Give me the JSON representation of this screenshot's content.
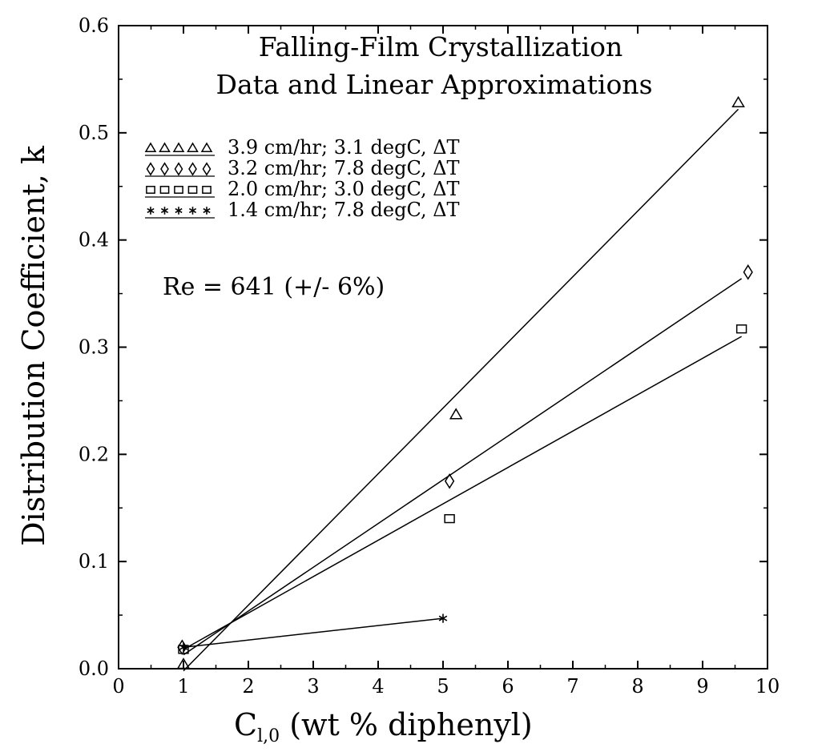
{
  "chart_data": {
    "type": "scatter",
    "title": "Falling-Film Crystallization",
    "subtitle": "Data and Linear Approximations",
    "xlabel": {
      "main": "C",
      "subscript": "l,0",
      "rest": " (wt % diphenyl)"
    },
    "ylabel": "Distribution Coefficient, k",
    "xlim": [
      0,
      10
    ],
    "ylim": [
      0,
      0.6
    ],
    "xticks": [
      "0",
      "1",
      "2",
      "3",
      "4",
      "5",
      "6",
      "7",
      "8",
      "9",
      "10"
    ],
    "yticks": [
      "0.0",
      "0.1",
      "0.2",
      "0.3",
      "0.4",
      "0.5",
      "0.6"
    ],
    "grid": false,
    "legend_position": "upper-left",
    "annotation": "Re = 641 (+/- 6%)",
    "series": [
      {
        "name": "3.9 cm/hr; 3.1 degC, ΔT",
        "marker": "triangle",
        "points": [
          [
            1.0,
            0.004
          ],
          [
            5.2,
            0.237
          ],
          [
            9.55,
            0.528
          ]
        ],
        "fit": [
          [
            1.0,
            -0.002
          ],
          [
            9.55,
            0.522
          ]
        ]
      },
      {
        "name": "3.2 cm/hr; 7.8 degC, ΔT",
        "marker": "diamond",
        "points": [
          [
            0.98,
            0.02
          ],
          [
            5.1,
            0.175
          ],
          [
            9.7,
            0.37
          ]
        ],
        "fit": [
          [
            1.0,
            0.013
          ],
          [
            9.6,
            0.364
          ]
        ]
      },
      {
        "name": "2.0 cm/hr; 3.0 degC, ΔT",
        "marker": "square",
        "points": [
          [
            1.0,
            0.018
          ],
          [
            5.1,
            0.14
          ],
          [
            9.6,
            0.317
          ]
        ],
        "fit": [
          [
            1.0,
            0.018
          ],
          [
            9.6,
            0.31
          ]
        ]
      },
      {
        "name": "1.4 cm/hr; 7.8 degC, ΔT",
        "marker": "star",
        "points": [
          [
            1.0,
            0.02
          ],
          [
            5.0,
            0.047
          ]
        ],
        "fit": [
          [
            1.0,
            0.02
          ],
          [
            5.0,
            0.047
          ]
        ]
      }
    ]
  }
}
